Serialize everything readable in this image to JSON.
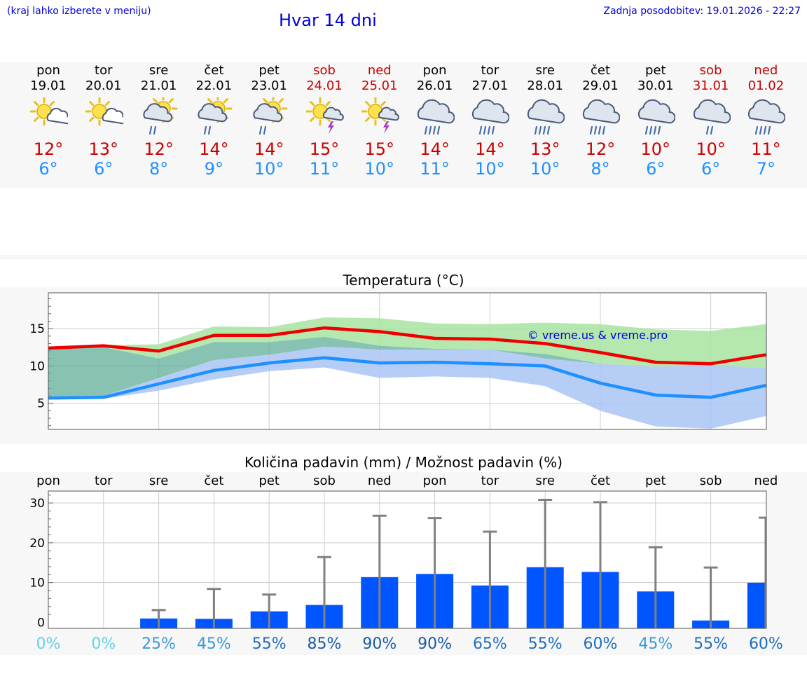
{
  "header": {
    "hint": "(kraj lahko izberete v meniju)",
    "title": "Hvar 14 dni",
    "updated": "Zadnja posodobitev: 19.01.2026 - 22:27"
  },
  "colors": {
    "tmax": "#ee0000",
    "tmin": "#1e90ff",
    "bar": "#0055ff",
    "weekend": "#cc0000",
    "title": "#0000dd"
  },
  "days": [
    {
      "name": "pon",
      "date": "19.01",
      "weekend": false,
      "icon": "sun-cloud-icon",
      "tmax": "12°",
      "tmin": "6°"
    },
    {
      "name": "tor",
      "date": "20.01",
      "weekend": false,
      "icon": "sun-cloud-icon",
      "tmax": "13°",
      "tmin": "6°"
    },
    {
      "name": "sre",
      "date": "21.01",
      "weekend": false,
      "icon": "sun-cloud-rain-icon",
      "tmax": "12°",
      "tmin": "8°"
    },
    {
      "name": "čet",
      "date": "22.01",
      "weekend": false,
      "icon": "sun-cloud-rain-icon",
      "tmax": "14°",
      "tmin": "9°"
    },
    {
      "name": "pet",
      "date": "23.01",
      "weekend": false,
      "icon": "sun-cloud-rain-icon",
      "tmax": "14°",
      "tmin": "10°"
    },
    {
      "name": "sob",
      "date": "24.01",
      "weekend": true,
      "icon": "sun-thunder-icon",
      "tmax": "15°",
      "tmin": "11°"
    },
    {
      "name": "ned",
      "date": "25.01",
      "weekend": true,
      "icon": "sun-thunder-icon",
      "tmax": "15°",
      "tmin": "10°"
    },
    {
      "name": "pon",
      "date": "26.01",
      "weekend": false,
      "icon": "cloud-rain-icon",
      "tmax": "14°",
      "tmin": "11°"
    },
    {
      "name": "tor",
      "date": "27.01",
      "weekend": false,
      "icon": "cloud-rain-icon",
      "tmax": "14°",
      "tmin": "10°"
    },
    {
      "name": "sre",
      "date": "28.01",
      "weekend": false,
      "icon": "cloud-rain-icon",
      "tmax": "13°",
      "tmin": "10°"
    },
    {
      "name": "čet",
      "date": "29.01",
      "weekend": false,
      "icon": "cloud-rain-icon",
      "tmax": "12°",
      "tmin": "8°"
    },
    {
      "name": "pet",
      "date": "30.01",
      "weekend": false,
      "icon": "cloud-rain-icon",
      "tmax": "10°",
      "tmin": "6°"
    },
    {
      "name": "sob",
      "date": "31.01",
      "weekend": true,
      "icon": "cloud-light-rain-icon",
      "tmax": "10°",
      "tmin": "6°"
    },
    {
      "name": "ned",
      "date": "01.02",
      "weekend": true,
      "icon": "cloud-rain-icon",
      "tmax": "11°",
      "tmin": "7°"
    }
  ],
  "chart_data": [
    {
      "type": "line",
      "title": "Temperatura (°C)",
      "watermark": "© vreme.us & vreme.pro",
      "x_index": [
        0,
        1,
        2,
        3,
        4,
        5,
        6,
        7,
        8,
        9,
        10,
        11,
        12,
        13
      ],
      "ylim": [
        1.5,
        19.8
      ],
      "yticks": [
        5,
        10,
        15
      ],
      "series": [
        {
          "name": "max",
          "color": "#ee0000",
          "values": [
            12.4,
            12.7,
            12.0,
            14.1,
            14.1,
            15.1,
            14.6,
            13.7,
            13.6,
            13.0,
            11.8,
            10.5,
            10.3,
            11.5
          ]
        },
        {
          "name": "min",
          "color": "#1e90ff",
          "values": [
            5.7,
            5.8,
            7.6,
            9.4,
            10.4,
            11.1,
            10.4,
            10.5,
            10.3,
            10.0,
            7.7,
            6.1,
            5.8,
            7.4
          ]
        }
      ],
      "bands": [
        {
          "name": "max-range",
          "color": "#a8e4a0",
          "low": [
            12.4,
            12.5,
            11.0,
            13.2,
            13.2,
            13.9,
            12.7,
            12.3,
            12.2,
            11.6,
            10.3,
            9.9,
            10.1,
            9.7
          ],
          "high": [
            12.4,
            12.8,
            12.9,
            15.3,
            15.2,
            16.5,
            16.4,
            15.7,
            15.6,
            15.8,
            15.6,
            14.9,
            14.7,
            15.6
          ]
        },
        {
          "name": "min-range",
          "color": "#a9c4f4",
          "low": [
            5.7,
            5.6,
            6.7,
            8.2,
            9.3,
            9.8,
            8.4,
            8.6,
            8.4,
            7.3,
            4.0,
            1.9,
            1.6,
            3.3
          ],
          "high": [
            5.7,
            6.0,
            8.4,
            10.8,
            11.5,
            12.6,
            12.2,
            12.2,
            12.2,
            11.0,
            10.3,
            9.9,
            10.1,
            9.7
          ]
        }
      ]
    },
    {
      "type": "bar",
      "title": "Količina padavin (mm) / Možnost padavin (%)",
      "categories": [
        "pon",
        "tor",
        "sre",
        "čet",
        "pet",
        "sob",
        "ned",
        "pon",
        "tor",
        "sre",
        "čet",
        "pet",
        "sob",
        "ned"
      ],
      "ylim": [
        -1.5,
        33
      ],
      "yticks": [
        0,
        10,
        20,
        30
      ],
      "values": [
        0,
        0,
        0.8,
        0.7,
        2.6,
        4.2,
        11.2,
        12.0,
        9.1,
        13.7,
        12.5,
        7.6,
        0.3,
        9.8
      ],
      "error_max": [
        0,
        0,
        3.1,
        8.4,
        7.0,
        16.4,
        26.8,
        26.2,
        22.8,
        30.8,
        30.2,
        18.9,
        13.8,
        26.3
      ],
      "probability": [
        "0%",
        "0%",
        "25%",
        "45%",
        "55%",
        "85%",
        "90%",
        "90%",
        "65%",
        "55%",
        "60%",
        "45%",
        "55%",
        "60%"
      ],
      "probability_values": [
        0,
        0,
        25,
        45,
        55,
        85,
        90,
        90,
        65,
        55,
        60,
        45,
        55,
        60
      ]
    }
  ]
}
